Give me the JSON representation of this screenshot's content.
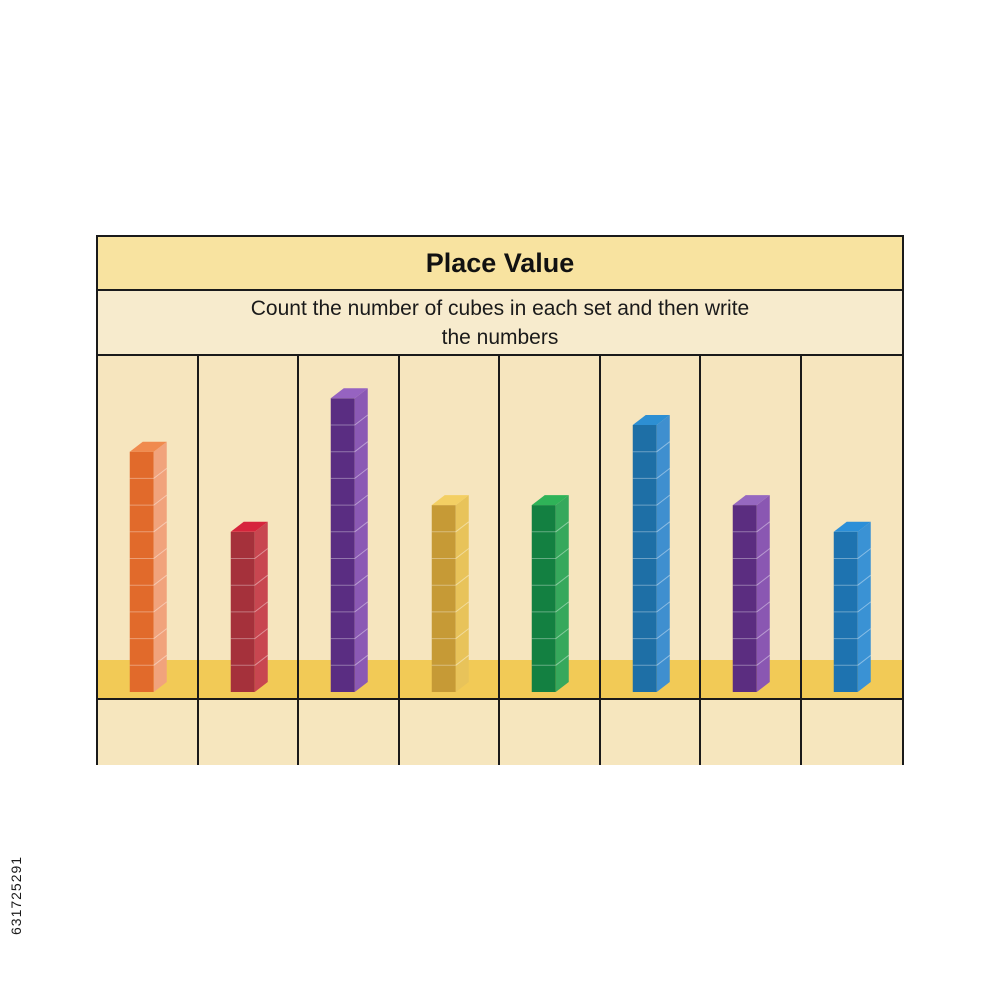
{
  "worksheet": {
    "title": "Place Value",
    "instruction": "Count the number of cubes in each set and then write the numbers"
  },
  "towers": [
    {
      "cubes": 9,
      "color_front": "#e16a2b",
      "color_side": "#f1a37c",
      "color_top": "#f08a4e"
    },
    {
      "cubes": 6,
      "color_front": "#a5313b",
      "color_side": "#c84650",
      "color_top": "#d6243c"
    },
    {
      "cubes": 11,
      "color_front": "#5a2d82",
      "color_side": "#8b59b4",
      "color_top": "#9663c1"
    },
    {
      "cubes": 7,
      "color_front": "#c69a36",
      "color_side": "#e8c35a",
      "color_top": "#f3cf63"
    },
    {
      "cubes": 7,
      "color_front": "#138041",
      "color_side": "#36a85c",
      "color_top": "#2fb358"
    },
    {
      "cubes": 10,
      "color_front": "#1e6fa6",
      "color_side": "#3f8fcf",
      "color_top": "#2d8fd3"
    },
    {
      "cubes": 7,
      "color_front": "#5b2d80",
      "color_side": "#8a57b2",
      "color_top": "#9668c0"
    },
    {
      "cubes": 6,
      "color_front": "#1e73b0",
      "color_side": "#3a92d4",
      "color_top": "#2c8fd8"
    }
  ],
  "answers": [
    "",
    "",
    "",
    "",
    "",
    "",
    "",
    ""
  ],
  "watermark": {
    "stock_id": "631725291"
  }
}
